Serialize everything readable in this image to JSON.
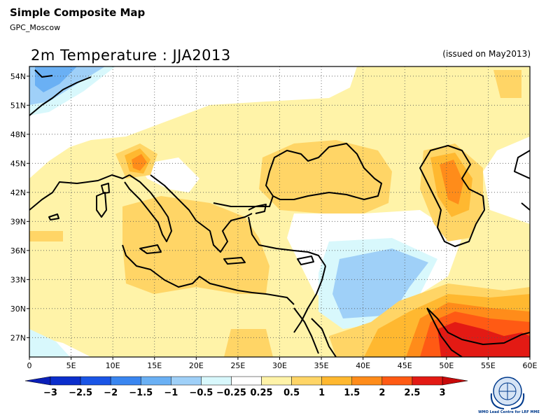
{
  "header": {
    "title": "Simple Composite Map",
    "subtitle": "GPC_Moscow"
  },
  "map": {
    "title": "2m Temperature : JJA2013",
    "issued": "(issued on May2013)",
    "lon_range": [
      0,
      60
    ],
    "lat_range": [
      25,
      55
    ],
    "lon_ticks": [
      "0",
      "5E",
      "10E",
      "15E",
      "20E",
      "25E",
      "30E",
      "35E",
      "40E",
      "45E",
      "50E",
      "55E",
      "60E"
    ],
    "lat_ticks": [
      "27N",
      "30N",
      "33N",
      "36N",
      "39N",
      "42N",
      "45N",
      "48N",
      "51N",
      "54N"
    ],
    "grid": true
  },
  "legend": {
    "labels": [
      "−3",
      "−2.5",
      "−2",
      "−1.5",
      "−1",
      "−0.5",
      "−0.25",
      "0.25",
      "0.5",
      "1",
      "1.5",
      "2",
      "2.5",
      "3"
    ],
    "colors": [
      "#0b2ecc",
      "#1a55e6",
      "#3a86f0",
      "#6ab0f4",
      "#9fd0f8",
      "#d8f8fc",
      "#ffffff",
      "#fff3a8",
      "#ffd566",
      "#ffb830",
      "#ff8c1a",
      "#ff5a14",
      "#e31a14"
    ],
    "under_color": "#0a1fb8",
    "over_color": "#c80a0a"
  },
  "colors": {
    "anom_0_5": "#fff3a8",
    "anom_1": "#ffd566",
    "anom_1_5": "#ffb830",
    "anom_2": "#ff8c1a",
    "anom_2_5": "#ff5a14",
    "anom_3": "#e31a14",
    "anom_m0_5": "#d8f8fc",
    "anom_m1": "#9fd0f8",
    "anom_m1_5": "#6ab0f4"
  },
  "logo": {
    "text": "WMO Lead Centre for LRF MME"
  }
}
